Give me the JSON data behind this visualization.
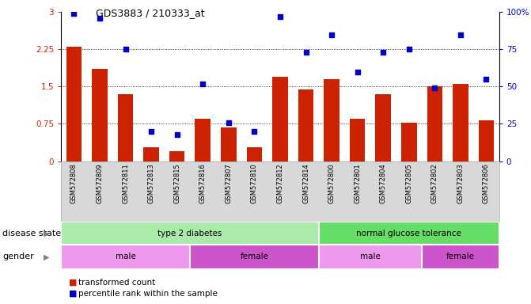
{
  "title": "GDS3883 / 210333_at",
  "samples": [
    "GSM572808",
    "GSM572809",
    "GSM572811",
    "GSM572813",
    "GSM572815",
    "GSM572816",
    "GSM572807",
    "GSM572810",
    "GSM572812",
    "GSM572814",
    "GSM572800",
    "GSM572801",
    "GSM572804",
    "GSM572805",
    "GSM572802",
    "GSM572803",
    "GSM572806"
  ],
  "bar_values": [
    2.3,
    1.85,
    1.35,
    0.28,
    0.2,
    0.85,
    0.68,
    0.28,
    1.7,
    1.45,
    1.65,
    0.85,
    1.35,
    0.78,
    1.5,
    1.55,
    0.82
  ],
  "dot_values": [
    99,
    96,
    75,
    20,
    18,
    52,
    26,
    20,
    97,
    73,
    85,
    60,
    73,
    75,
    49,
    85,
    55
  ],
  "ylim_left": [
    0,
    3
  ],
  "ylim_right": [
    0,
    100
  ],
  "yticks_left": [
    0,
    0.75,
    1.5,
    2.25,
    3
  ],
  "yticks_right": [
    0,
    25,
    50,
    75,
    100
  ],
  "ytick_labels_left": [
    "0",
    "0.75",
    "1.5",
    "2.25",
    "3"
  ],
  "ytick_labels_right": [
    "0",
    "25",
    "50",
    "75",
    "100%"
  ],
  "grid_lines": [
    0.75,
    1.5,
    2.25
  ],
  "bar_color": "#cc2200",
  "dot_color": "#0000cc",
  "disease_state_groups": [
    {
      "label": "type 2 diabetes",
      "start": 0,
      "end": 9,
      "color": "#aaeaaa"
    },
    {
      "label": "normal glucose tolerance",
      "start": 10,
      "end": 16,
      "color": "#66dd66"
    }
  ],
  "gender_groups": [
    {
      "label": "male",
      "start": 0,
      "end": 4,
      "color": "#ee99ee"
    },
    {
      "label": "female",
      "start": 5,
      "end": 9,
      "color": "#cc55cc"
    },
    {
      "label": "male",
      "start": 10,
      "end": 13,
      "color": "#ee99ee"
    },
    {
      "label": "female",
      "start": 14,
      "end": 16,
      "color": "#cc55cc"
    }
  ],
  "disease_label": "disease state",
  "gender_label": "gender",
  "legend_bar_label": "transformed count",
  "legend_dot_label": "percentile rank within the sample",
  "background_color": "#ffffff",
  "sample_area_color": "#d8d8d8"
}
